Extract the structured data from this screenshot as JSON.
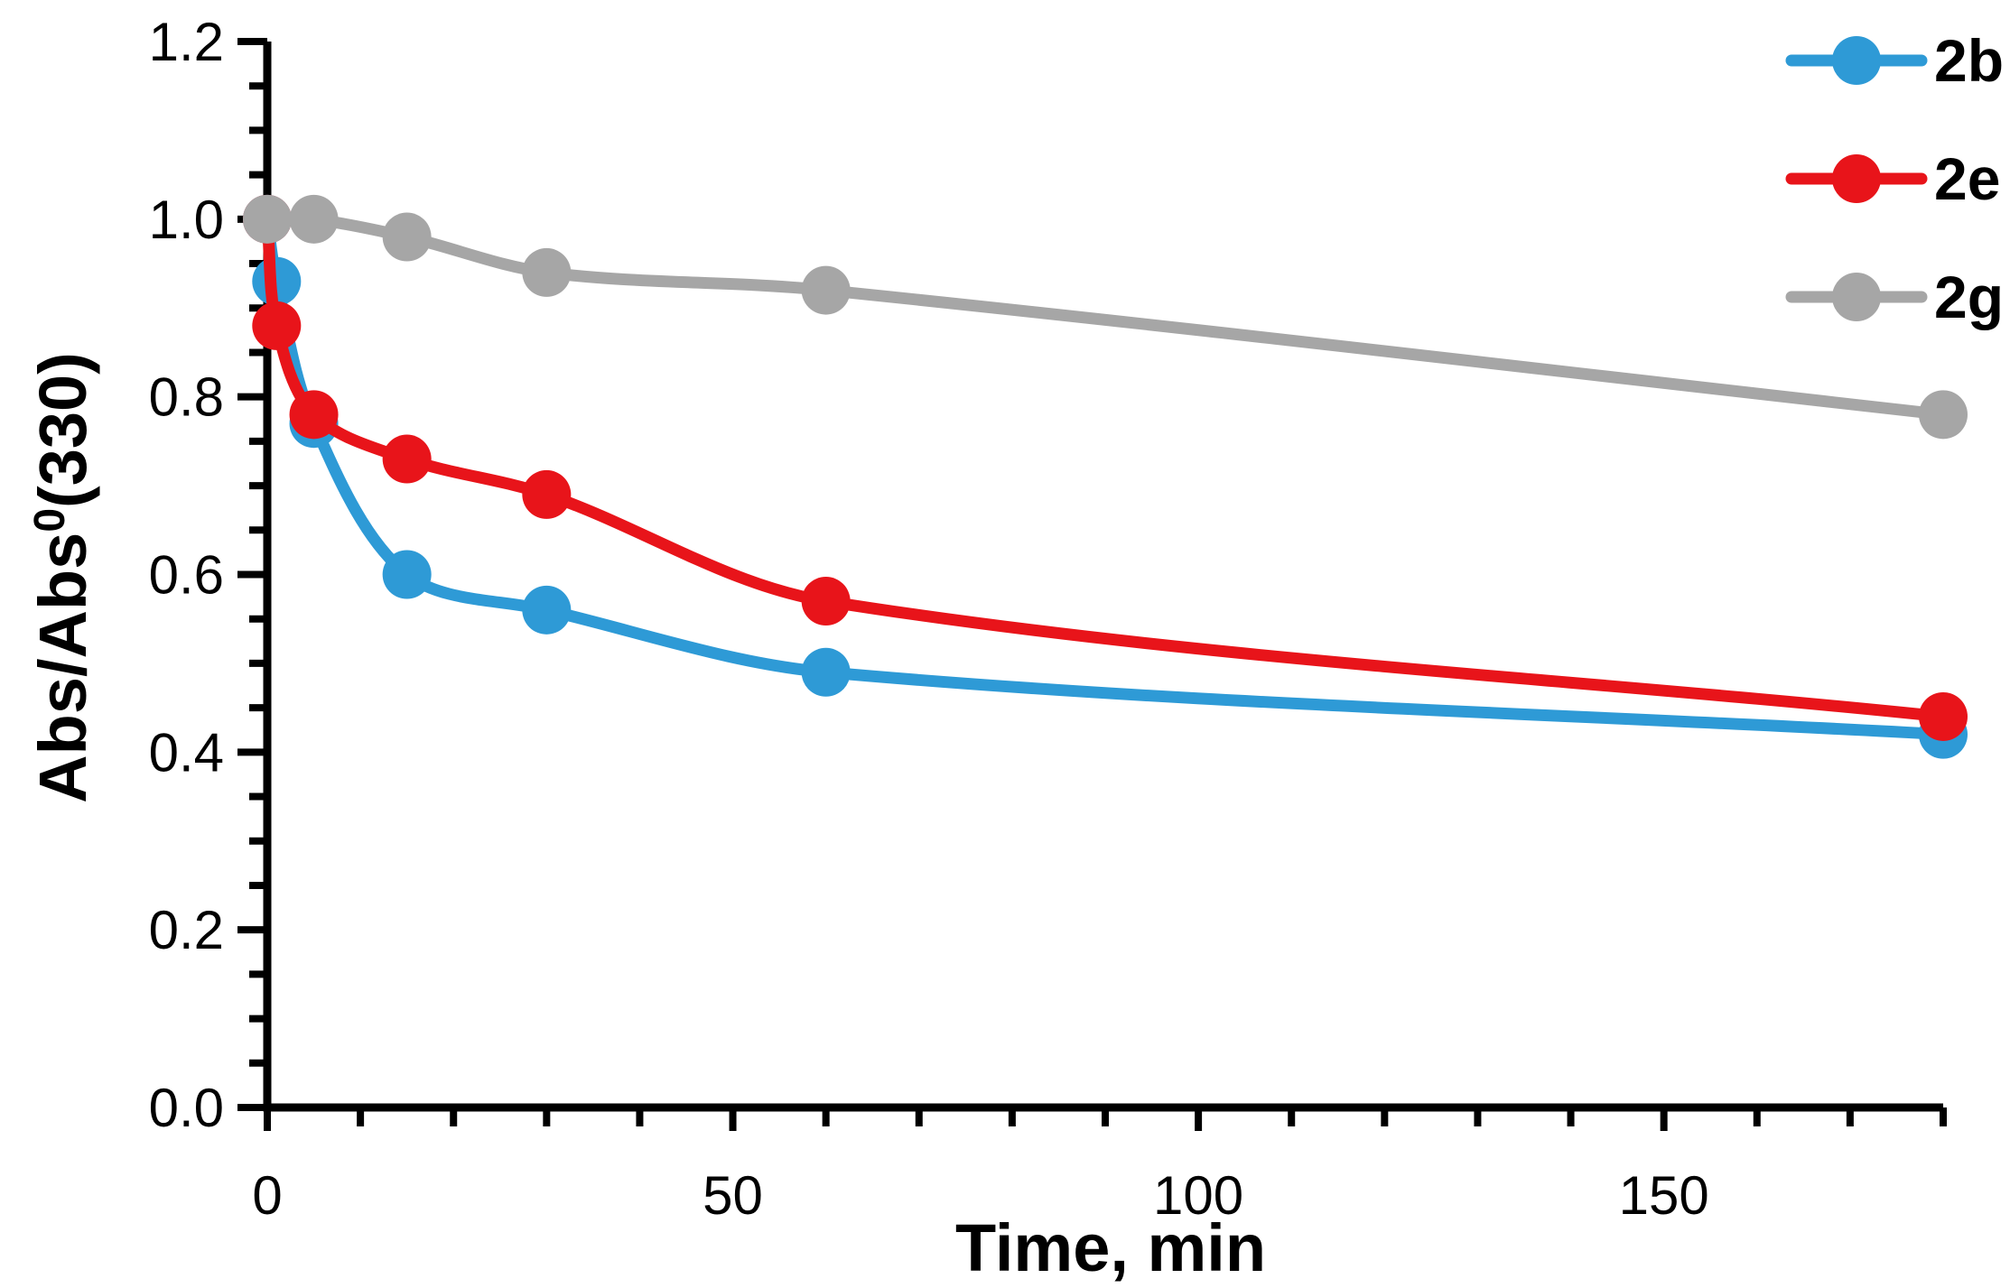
{
  "chart_data": {
    "type": "line",
    "title": "",
    "xlabel": "Time, min",
    "ylabel": "Abs/Abs⁰(330)",
    "ylabel_parts": {
      "base": "Abs/Abs",
      "sup": "0",
      "rest": "(330)"
    },
    "x_range": [
      0,
      180
    ],
    "y_range": [
      0,
      1.2
    ],
    "x_ticks_major": [
      0,
      50,
      100,
      150
    ],
    "x_tick_labels": [
      "0",
      "50",
      "100",
      "150"
    ],
    "x_minor_step": 10,
    "y_ticks_major": [
      0,
      0.2,
      0.4,
      0.6,
      0.8,
      1.0,
      1.2
    ],
    "y_tick_labels": [
      "0.0",
      "0.2",
      "0.4",
      "0.6",
      "0.8",
      "1.0",
      "1.2"
    ],
    "y_minor_step": 0.05,
    "grid": false,
    "legend_position": "top-right",
    "axis_color": "#000000",
    "background": "#ffffff",
    "series": [
      {
        "name": "2b",
        "color": "#2E9AD6",
        "x": [
          0,
          1,
          5,
          15,
          30,
          60,
          180
        ],
        "y": [
          1.0,
          0.93,
          0.77,
          0.6,
          0.56,
          0.49,
          0.42
        ]
      },
      {
        "name": "2e",
        "color": "#E8141A",
        "x": [
          0,
          1,
          5,
          15,
          30,
          60,
          180
        ],
        "y": [
          1.0,
          0.88,
          0.78,
          0.73,
          0.69,
          0.57,
          0.44
        ]
      },
      {
        "name": "2g",
        "color": "#A6A6A6",
        "x": [
          0,
          5,
          15,
          30,
          60,
          180
        ],
        "y": [
          1.0,
          1.0,
          0.98,
          0.94,
          0.92,
          0.78
        ]
      }
    ]
  }
}
